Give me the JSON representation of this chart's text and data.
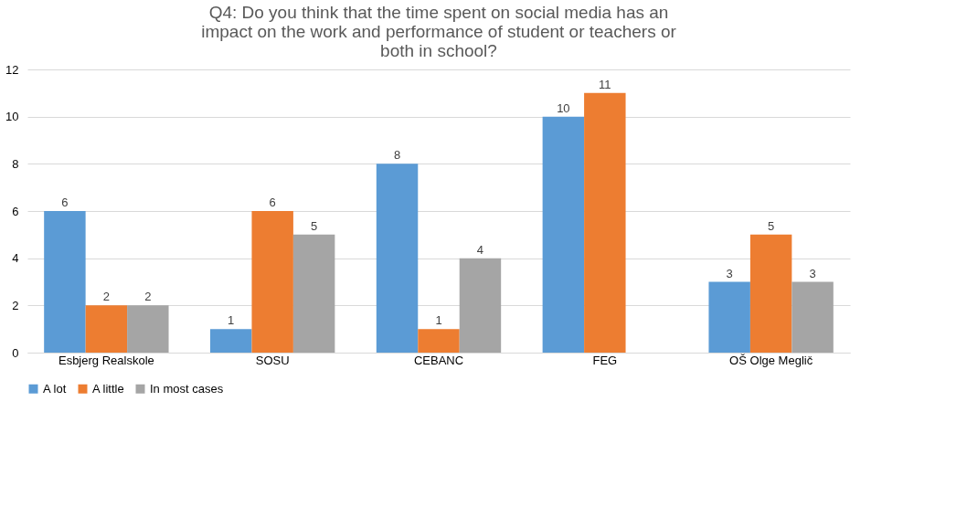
{
  "chart_data": {
    "type": "bar",
    "title": "Q4: Do you think that the time spent on social media has an impact on the work and performance of student or teachers or both in school?",
    "categories": [
      "Esbjerg Realskole",
      "SOSU",
      "CEBANC",
      "FEG",
      "OŠ Olge Meglič"
    ],
    "series": [
      {
        "name": "A lot",
        "color": "#5b9bd5",
        "values": [
          6,
          1,
          8,
          10,
          3
        ]
      },
      {
        "name": "A little",
        "color": "#ed7d31",
        "values": [
          2,
          6,
          1,
          11,
          5
        ]
      },
      {
        "name": "In most cases",
        "color": "#a5a5a5",
        "values": [
          2,
          5,
          4,
          null,
          3
        ]
      }
    ],
    "ylim": [
      0,
      12
    ],
    "yticks": [
      0,
      2,
      4,
      6,
      8,
      10,
      12
    ],
    "grid": "y",
    "legend": "bottom",
    "data_labels": true
  }
}
